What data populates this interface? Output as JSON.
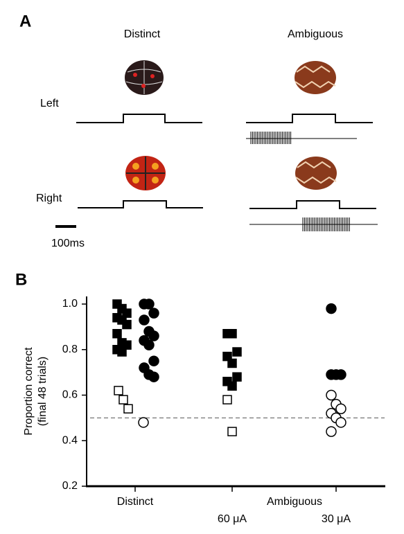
{
  "panel_a": {
    "label": "A",
    "columns": [
      "Distinct",
      "Ambiguous"
    ],
    "rows": [
      "Left",
      "Right"
    ],
    "scale_bar": "100ms"
  },
  "chart_data": {
    "type": "scatter",
    "panel_label": "B",
    "y_label": [
      "Proportion correct",
      "(final 48 trials)"
    ],
    "x_labels": [
      "Distinct",
      "Ambiguous",
      "60 μA",
      "30 μA"
    ],
    "ylim": [
      0.2,
      1.0
    ],
    "yticks": [
      0.2,
      0.4,
      0.6,
      0.8,
      {
        "value": 1,
        "label": "1.0"
      }
    ],
    "reference_line": 0.5,
    "series": [
      {
        "marker": "square",
        "color": "#000000",
        "fill": "#000000",
        "values": [
          1.0,
          0.98,
          0.96,
          0.94,
          0.93,
          0.91,
          0.87,
          0.83,
          0.82,
          0.8,
          0.79
        ]
      },
      {
        "marker": "square",
        "color": "#000000",
        "fill": "#ffffff",
        "values": [
          0.62,
          0.58,
          0.54
        ]
      },
      {
        "marker": "circle",
        "color": "#000000",
        "fill": "#000000",
        "values": [
          1.0,
          1.0,
          0.96,
          0.93,
          0.88,
          0.86,
          0.84,
          0.82,
          0.75,
          0.72,
          0.69,
          0.68
        ]
      },
      {
        "marker": "circle",
        "color": "#000000",
        "fill": "#ffffff",
        "values": [
          0.48
        ]
      },
      {
        "marker": "square",
        "color": "#000000",
        "fill": "#000000",
        "values": [
          0.87,
          0.87,
          0.79,
          0.77,
          0.74,
          0.68,
          0.66,
          0.64
        ]
      },
      {
        "marker": "square",
        "color": "#000000",
        "fill": "#ffffff",
        "values": [
          0.58,
          0.44
        ]
      },
      {
        "marker": "circle",
        "color": "#000000",
        "fill": "#000000",
        "values": [
          0.98,
          0.69,
          0.69,
          0.69
        ]
      },
      {
        "marker": "circle",
        "color": "#000000",
        "fill": "#ffffff",
        "values": [
          0.6,
          0.56,
          0.54,
          0.52,
          0.5,
          0.48,
          0.44
        ]
      }
    ]
  }
}
